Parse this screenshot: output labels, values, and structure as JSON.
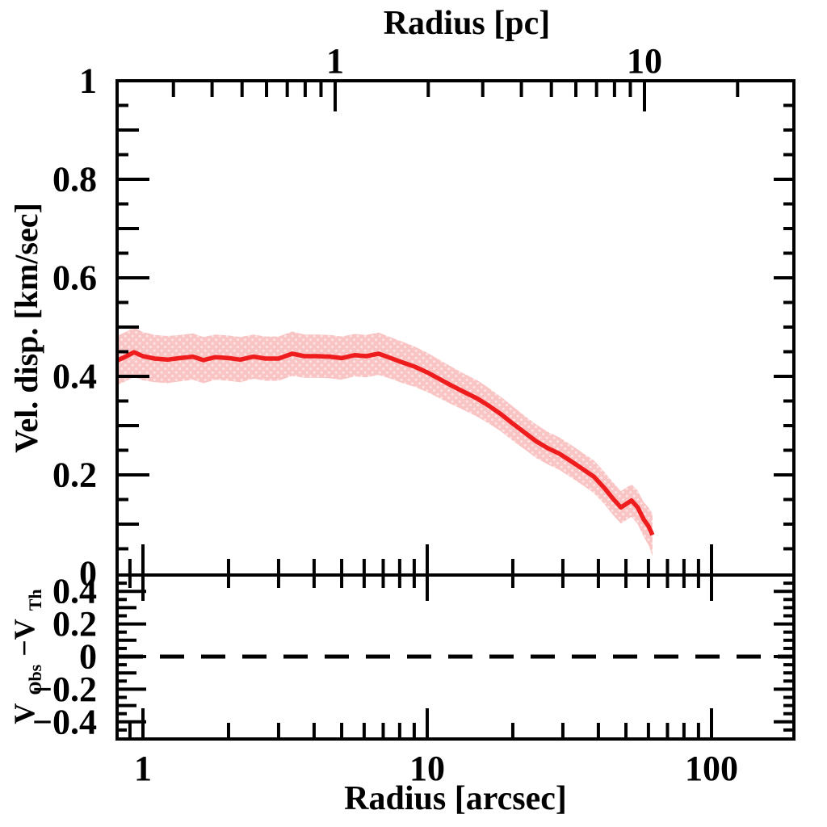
{
  "figure": {
    "background_color": "#ffffff",
    "axis_color": "#000000",
    "top_axis_title": "Radius [pc]",
    "bottom_axis_title": "Radius [arcsec]",
    "top_panel_ylabel": "Vel. disp. [km/sec]",
    "bottom_ylabel_parts": {
      "v1": "V",
      "sub1": "Obs",
      "mid": "−V",
      "sub2": "Th"
    }
  },
  "chart_data": [
    {
      "type": "line",
      "panel": "top",
      "title": "",
      "xlabel_top": "Radius [pc]",
      "xlabel_bottom": "Radius [arcsec]",
      "ylabel": "Vel. disp. [km/sec]",
      "xscale": "log",
      "xlim_arcsec": [
        0.81,
        195
      ],
      "ylim": [
        0,
        1
      ],
      "grid": false,
      "legend": "none",
      "x_axis_bottom": {
        "unit": "arcsec",
        "major_ticks": [
          1,
          10,
          100
        ],
        "major_labels": [
          "1",
          "10",
          "100"
        ],
        "minor_ticks": [
          0.9,
          2,
          3,
          4,
          5,
          6,
          7,
          8,
          9,
          20,
          30,
          40,
          50,
          60,
          70,
          80,
          90
        ]
      },
      "x_axis_top": {
        "unit": "pc",
        "major_ticks": [
          1,
          10
        ],
        "major_labels": [
          "1",
          "10"
        ],
        "minor_ticks": [
          0.3,
          0.4,
          0.5,
          0.6,
          0.7,
          0.8,
          0.9,
          2,
          3,
          4,
          5,
          6,
          7,
          8,
          9,
          20
        ],
        "pc_to_arcsec_at_1pc": 4.7
      },
      "y_axis": {
        "unit": "km/sec",
        "major_ticks": [
          0,
          0.2,
          0.4,
          0.6,
          0.8,
          1
        ],
        "major_labels": [
          "0",
          "0.2",
          "0.4",
          "0.6",
          "0.8",
          "1"
        ],
        "minor_step": 0.05
      },
      "series": [
        {
          "name": "velocity-dispersion",
          "style": "solid",
          "color": "#ee1c1c",
          "x_arcsec": [
            0.81,
            0.87,
            0.93,
            1.0,
            1.1,
            1.22,
            1.35,
            1.5,
            1.63,
            1.8,
            2.0,
            2.2,
            2.45,
            2.7,
            3.0,
            3.35,
            3.7,
            4.1,
            4.55,
            5.0,
            5.55,
            6.1,
            6.75,
            7.45,
            8.2,
            9.0,
            10.0,
            11.0,
            12.2,
            13.5,
            15.0,
            16.5,
            18.2,
            20.0,
            22.0,
            24.2,
            26.6,
            29.2,
            32.0,
            35.2,
            38.6,
            42.2,
            45.0,
            48.0,
            52.3,
            55.0,
            57.7,
            60.0,
            62.0
          ],
          "y_km_s": [
            0.432,
            0.44,
            0.449,
            0.441,
            0.436,
            0.434,
            0.437,
            0.44,
            0.433,
            0.439,
            0.437,
            0.434,
            0.44,
            0.436,
            0.436,
            0.446,
            0.441,
            0.441,
            0.44,
            0.437,
            0.443,
            0.441,
            0.446,
            0.437,
            0.428,
            0.42,
            0.408,
            0.395,
            0.381,
            0.368,
            0.355,
            0.34,
            0.323,
            0.304,
            0.286,
            0.268,
            0.254,
            0.243,
            0.228,
            0.212,
            0.196,
            0.172,
            0.152,
            0.134,
            0.148,
            0.134,
            0.11,
            0.096,
            0.078
          ]
        },
        {
          "name": "uncertainty-band",
          "style": "filled-band",
          "color": "#f9c4c4",
          "x_arcsec": [
            0.81,
            0.87,
            0.93,
            1.0,
            1.1,
            1.22,
            1.35,
            1.5,
            1.63,
            1.8,
            2.0,
            2.2,
            2.45,
            2.7,
            3.0,
            3.35,
            3.7,
            4.1,
            4.55,
            5.0,
            5.55,
            6.1,
            6.75,
            7.45,
            8.2,
            9.0,
            10.0,
            11.0,
            12.2,
            13.5,
            15.0,
            16.5,
            18.2,
            20.0,
            22.0,
            24.2,
            26.6,
            29.2,
            32.0,
            35.2,
            38.6,
            42.2,
            45.0,
            48.0,
            52.3,
            55.0,
            57.7,
            60.0,
            62.0
          ],
          "upper": [
            0.482,
            0.49,
            0.499,
            0.49,
            0.484,
            0.482,
            0.484,
            0.487,
            0.48,
            0.485,
            0.483,
            0.48,
            0.485,
            0.481,
            0.481,
            0.491,
            0.485,
            0.485,
            0.484,
            0.481,
            0.486,
            0.484,
            0.489,
            0.479,
            0.47,
            0.461,
            0.448,
            0.434,
            0.419,
            0.405,
            0.392,
            0.376,
            0.358,
            0.339,
            0.32,
            0.302,
            0.287,
            0.276,
            0.261,
            0.245,
            0.229,
            0.205,
            0.185,
            0.167,
            0.181,
            0.168,
            0.145,
            0.134,
            0.121
          ],
          "lower": [
            0.382,
            0.39,
            0.399,
            0.392,
            0.388,
            0.386,
            0.39,
            0.393,
            0.386,
            0.393,
            0.391,
            0.388,
            0.395,
            0.391,
            0.391,
            0.401,
            0.397,
            0.397,
            0.396,
            0.393,
            0.4,
            0.398,
            0.403,
            0.395,
            0.386,
            0.379,
            0.368,
            0.356,
            0.343,
            0.331,
            0.318,
            0.304,
            0.288,
            0.269,
            0.252,
            0.234,
            0.221,
            0.21,
            0.195,
            0.179,
            0.163,
            0.139,
            0.119,
            0.101,
            0.115,
            0.1,
            0.075,
            0.058,
            0.035
          ]
        }
      ]
    },
    {
      "type": "line",
      "panel": "bottom",
      "ylabel": "V_Obs − V_Th",
      "xscale": "log",
      "xlim_arcsec": [
        0.81,
        195
      ],
      "ylim": [
        -0.5,
        0.5
      ],
      "grid": false,
      "y_axis": {
        "major_ticks": [
          0.4,
          0.2,
          0,
          -0.2,
          -0.4
        ],
        "major_labels": [
          "0.4",
          "0.2",
          "0",
          "−0.2",
          "−0.4"
        ],
        "minor_step": 0.05
      },
      "reference_line": {
        "y": 0,
        "style": "dashed",
        "color": "#000000"
      },
      "series": []
    }
  ]
}
